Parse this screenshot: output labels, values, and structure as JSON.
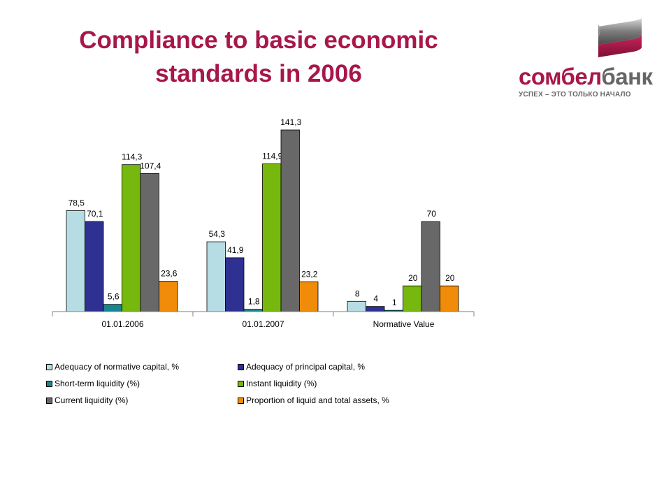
{
  "header": {
    "title_line1": "Compliance to basic economic",
    "title_line2": "standards in 2006"
  },
  "logo": {
    "name_part1": "сомбел",
    "name_part2": "банк",
    "tagline": "УСПЕХ – ЭТО ТОЛЬКО НАЧАЛО",
    "colors": {
      "red": "#a8174a",
      "gray": "#666666"
    }
  },
  "chart_data": {
    "type": "bar",
    "title": "",
    "categories": [
      "01.01.2006",
      "01.01.2007",
      "Normative Value"
    ],
    "series": [
      {
        "name": "Adequacy of normative capital, %",
        "values": [
          78.5,
          54.3,
          8
        ],
        "labels": [
          "78,5",
          "54,3",
          "8"
        ],
        "color": "#b7dde4"
      },
      {
        "name": "Adequacy of principal capital, %",
        "values": [
          70.1,
          41.9,
          4
        ],
        "labels": [
          "70,1",
          "41,9",
          "4"
        ],
        "color": "#2e3192"
      },
      {
        "name": "Short-term liquidity (%)",
        "values": [
          5.6,
          1.8,
          1
        ],
        "labels": [
          "5,6",
          "1,8",
          "1"
        ],
        "color": "#17868f"
      },
      {
        "name": "Instant liquidity (%)",
        "values": [
          114.3,
          114.9,
          20
        ],
        "labels": [
          "114,3",
          "114,9",
          "20"
        ],
        "color": "#77b80f"
      },
      {
        "name": "Current liquidity (%)",
        "values": [
          107.4,
          141.3,
          70
        ],
        "labels": [
          "107,4",
          "141,3",
          "70"
        ],
        "color": "#686868"
      },
      {
        "name": "Proportion of liquid and total assets, %",
        "values": [
          23.6,
          23.2,
          20
        ],
        "labels": [
          "23,6",
          "23,2",
          "20"
        ],
        "color": "#f08c0a"
      }
    ],
    "ylim": [
      0,
      141.3
    ],
    "grid": false,
    "legend_position": "bottom",
    "xlabel": "",
    "ylabel": ""
  }
}
